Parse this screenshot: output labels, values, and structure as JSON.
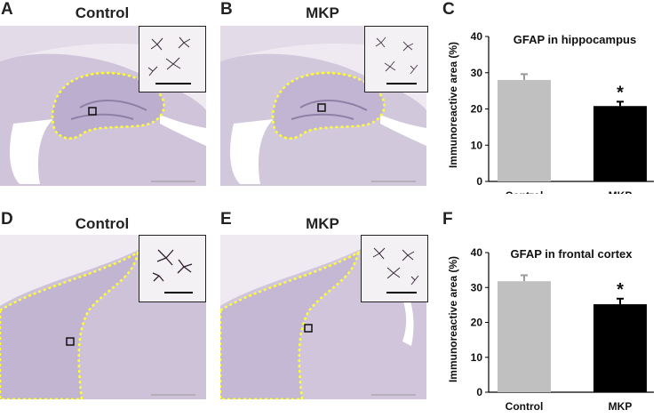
{
  "panels": [
    {
      "letter": "A",
      "title": "Control"
    },
    {
      "letter": "B",
      "title": "MKP"
    },
    {
      "letter": "C"
    },
    {
      "letter": "D",
      "title": "Control"
    },
    {
      "letter": "E",
      "title": "MKP"
    },
    {
      "letter": "F"
    }
  ],
  "colors": {
    "tissue": "#cbc0d6",
    "tissue_dark": "#8f7fa6",
    "outline": "#ffff33",
    "control_bar": "#c0c0c0",
    "mkp_bar": "#000000"
  },
  "chart_data": [
    {
      "type": "bar",
      "title": "GFAP in hippocampus",
      "ylabel": "Immunoreactive area (%)",
      "categories": [
        "Control",
        "MKP"
      ],
      "values": [
        28,
        20.8
      ],
      "errors": [
        1.6,
        1.2
      ],
      "ylim": [
        0,
        40
      ],
      "yticks": [
        "0",
        "10",
        "20",
        "30",
        "40"
      ],
      "significance": [
        "",
        "*"
      ]
    },
    {
      "type": "bar",
      "title": "GFAP in frontal cortex",
      "ylabel": "Immunoreactive area (%)",
      "categories": [
        "Control",
        "MKP"
      ],
      "values": [
        31.8,
        25.2
      ],
      "errors": [
        1.7,
        1.6
      ],
      "ylim": [
        0,
        40
      ],
      "yticks": [
        "0",
        "10",
        "20",
        "30",
        "40"
      ],
      "significance": [
        "",
        "*"
      ]
    }
  ]
}
